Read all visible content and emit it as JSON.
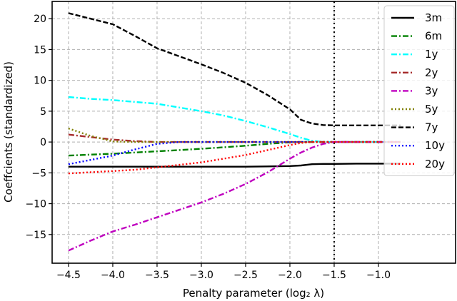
{
  "chart_data": {
    "type": "line",
    "title": "",
    "xlabel": "Penalty parameter (log₂ λ)",
    "ylabel": "Coeffcients (standardized)",
    "xlim": [
      -4.685,
      -0.129
    ],
    "ylim": [
      -19.65,
      22.8
    ],
    "xticks": [
      -4.5,
      -4.0,
      -3.5,
      -3.0,
      -2.5,
      -2.0,
      -1.5,
      -1.0
    ],
    "xtick_labels": [
      "−4.5",
      "−4.0",
      "−3.5",
      "−3.0",
      "−2.5",
      "−2.0",
      "−1.5",
      "−1.0"
    ],
    "yticks": [
      20,
      15,
      10,
      5,
      0,
      -5,
      -10,
      -15
    ],
    "ytick_labels": [
      "20",
      "15",
      "10",
      "5",
      "0",
      "−5",
      "−10",
      "−15"
    ],
    "grid": true,
    "legend_position": "upper right",
    "vline": {
      "x": -1.5,
      "style": "dotted",
      "color": "#000000"
    },
    "x": [
      -4.5,
      -4.25,
      -4.0,
      -3.75,
      -3.5,
      -3.25,
      -3.0,
      -2.75,
      -2.5,
      -2.25,
      -2.0,
      -1.875,
      -1.75,
      -1.625,
      -1.5,
      -1.25,
      -1.0,
      -0.75
    ],
    "series": [
      {
        "name": "3m",
        "color": "#000000",
        "style": "solid",
        "values": [
          -4.0,
          -4.0,
          -4.0,
          -4.0,
          -4.0,
          -4.0,
          -4.0,
          -4.0,
          -4.0,
          -3.95,
          -3.9,
          -3.8,
          -3.6,
          -3.55,
          -3.55,
          -3.5,
          -3.5,
          -3.5
        ]
      },
      {
        "name": "6m",
        "color": "#008000",
        "style": "dashdot",
        "values": [
          -2.2,
          -2.05,
          -1.9,
          -1.7,
          -1.5,
          -1.3,
          -1.1,
          -0.85,
          -0.6,
          -0.3,
          -0.05,
          0,
          0,
          0,
          0,
          0,
          0,
          0
        ]
      },
      {
        "name": "1y",
        "color": "#00ffff",
        "style": "dashdot",
        "values": [
          7.3,
          7.0,
          6.8,
          6.5,
          6.2,
          5.6,
          5.0,
          4.3,
          3.4,
          2.4,
          1.3,
          0.7,
          0.2,
          0,
          0,
          0,
          0,
          0
        ]
      },
      {
        "name": "2y",
        "color": "#a52a2a",
        "style": "dashdot",
        "values": [
          1.2,
          0.8,
          0.4,
          0.15,
          0,
          0,
          0,
          0,
          0,
          0,
          0,
          0,
          0,
          0,
          0,
          0,
          0,
          0
        ]
      },
      {
        "name": "3y",
        "color": "#bf00bf",
        "style": "dashdot",
        "values": [
          -17.6,
          -16.0,
          -14.5,
          -13.4,
          -12.2,
          -11.0,
          -9.8,
          -8.4,
          -6.8,
          -4.9,
          -2.7,
          -1.7,
          -0.9,
          -0.3,
          0,
          0,
          0,
          0
        ]
      },
      {
        "name": "5y",
        "color": "#808000",
        "style": "dotted",
        "values": [
          2.2,
          1.0,
          0.1,
          0,
          0,
          0,
          0,
          0,
          0,
          0,
          0,
          0,
          0,
          0,
          0,
          0,
          0,
          0
        ]
      },
      {
        "name": "7y",
        "color": "#000000",
        "style": "dashed",
        "values": [
          20.9,
          20.0,
          19.1,
          17.2,
          15.2,
          13.9,
          12.6,
          11.2,
          9.6,
          7.6,
          5.3,
          3.6,
          3.0,
          2.75,
          2.7,
          2.7,
          2.7,
          2.7
        ]
      },
      {
        "name": "10y",
        "color": "#0000ff",
        "style": "dotted",
        "values": [
          -3.6,
          -2.9,
          -2.2,
          -1.2,
          -0.3,
          0,
          0,
          0,
          0,
          0,
          0,
          0,
          0,
          0,
          0,
          0,
          0,
          0
        ]
      },
      {
        "name": "20y",
        "color": "#ff0000",
        "style": "dotted",
        "values": [
          -5.1,
          -4.9,
          -4.7,
          -4.5,
          -4.1,
          -3.7,
          -3.3,
          -2.7,
          -2.1,
          -1.3,
          -0.5,
          -0.15,
          0,
          0,
          0,
          0,
          0,
          0
        ]
      }
    ]
  }
}
